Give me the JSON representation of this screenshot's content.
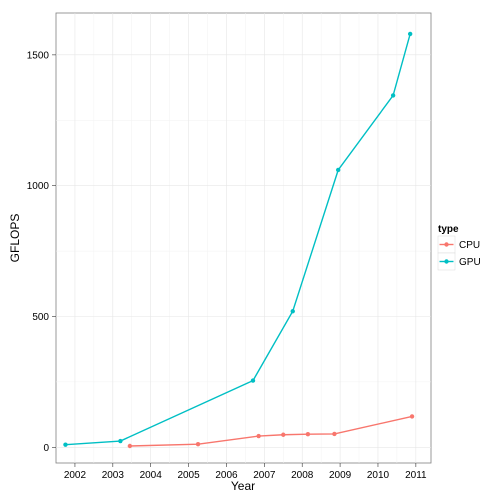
{
  "chart_data": {
    "type": "line",
    "title": "",
    "xlabel": "Year",
    "ylabel": "GFLOPS",
    "xlim": [
      2001.5,
      2011.4
    ],
    "ylim": [
      -60,
      1660
    ],
    "x_ticks": [
      2002,
      2003,
      2004,
      2005,
      2006,
      2007,
      2008,
      2009,
      2010,
      2011
    ],
    "y_ticks": [
      0,
      500,
      1000,
      1500
    ],
    "grid": true,
    "legend": {
      "title": "type",
      "placement": "right"
    },
    "series": [
      {
        "name": "CPU",
        "color": "#F8766D",
        "points": [
          [
            2003.45,
            5
          ],
          [
            2005.25,
            12
          ],
          [
            2006.85,
            43
          ],
          [
            2007.5,
            48
          ],
          [
            2008.15,
            50
          ],
          [
            2008.85,
            51
          ],
          [
            2010.9,
            118
          ]
        ]
      },
      {
        "name": "GPU",
        "color": "#00BFC4",
        "points": [
          [
            2001.75,
            10
          ],
          [
            2003.2,
            24
          ],
          [
            2006.7,
            255
          ],
          [
            2007.75,
            520
          ],
          [
            2008.95,
            1060
          ],
          [
            2010.4,
            1345
          ],
          [
            2010.85,
            1580
          ]
        ]
      }
    ]
  }
}
